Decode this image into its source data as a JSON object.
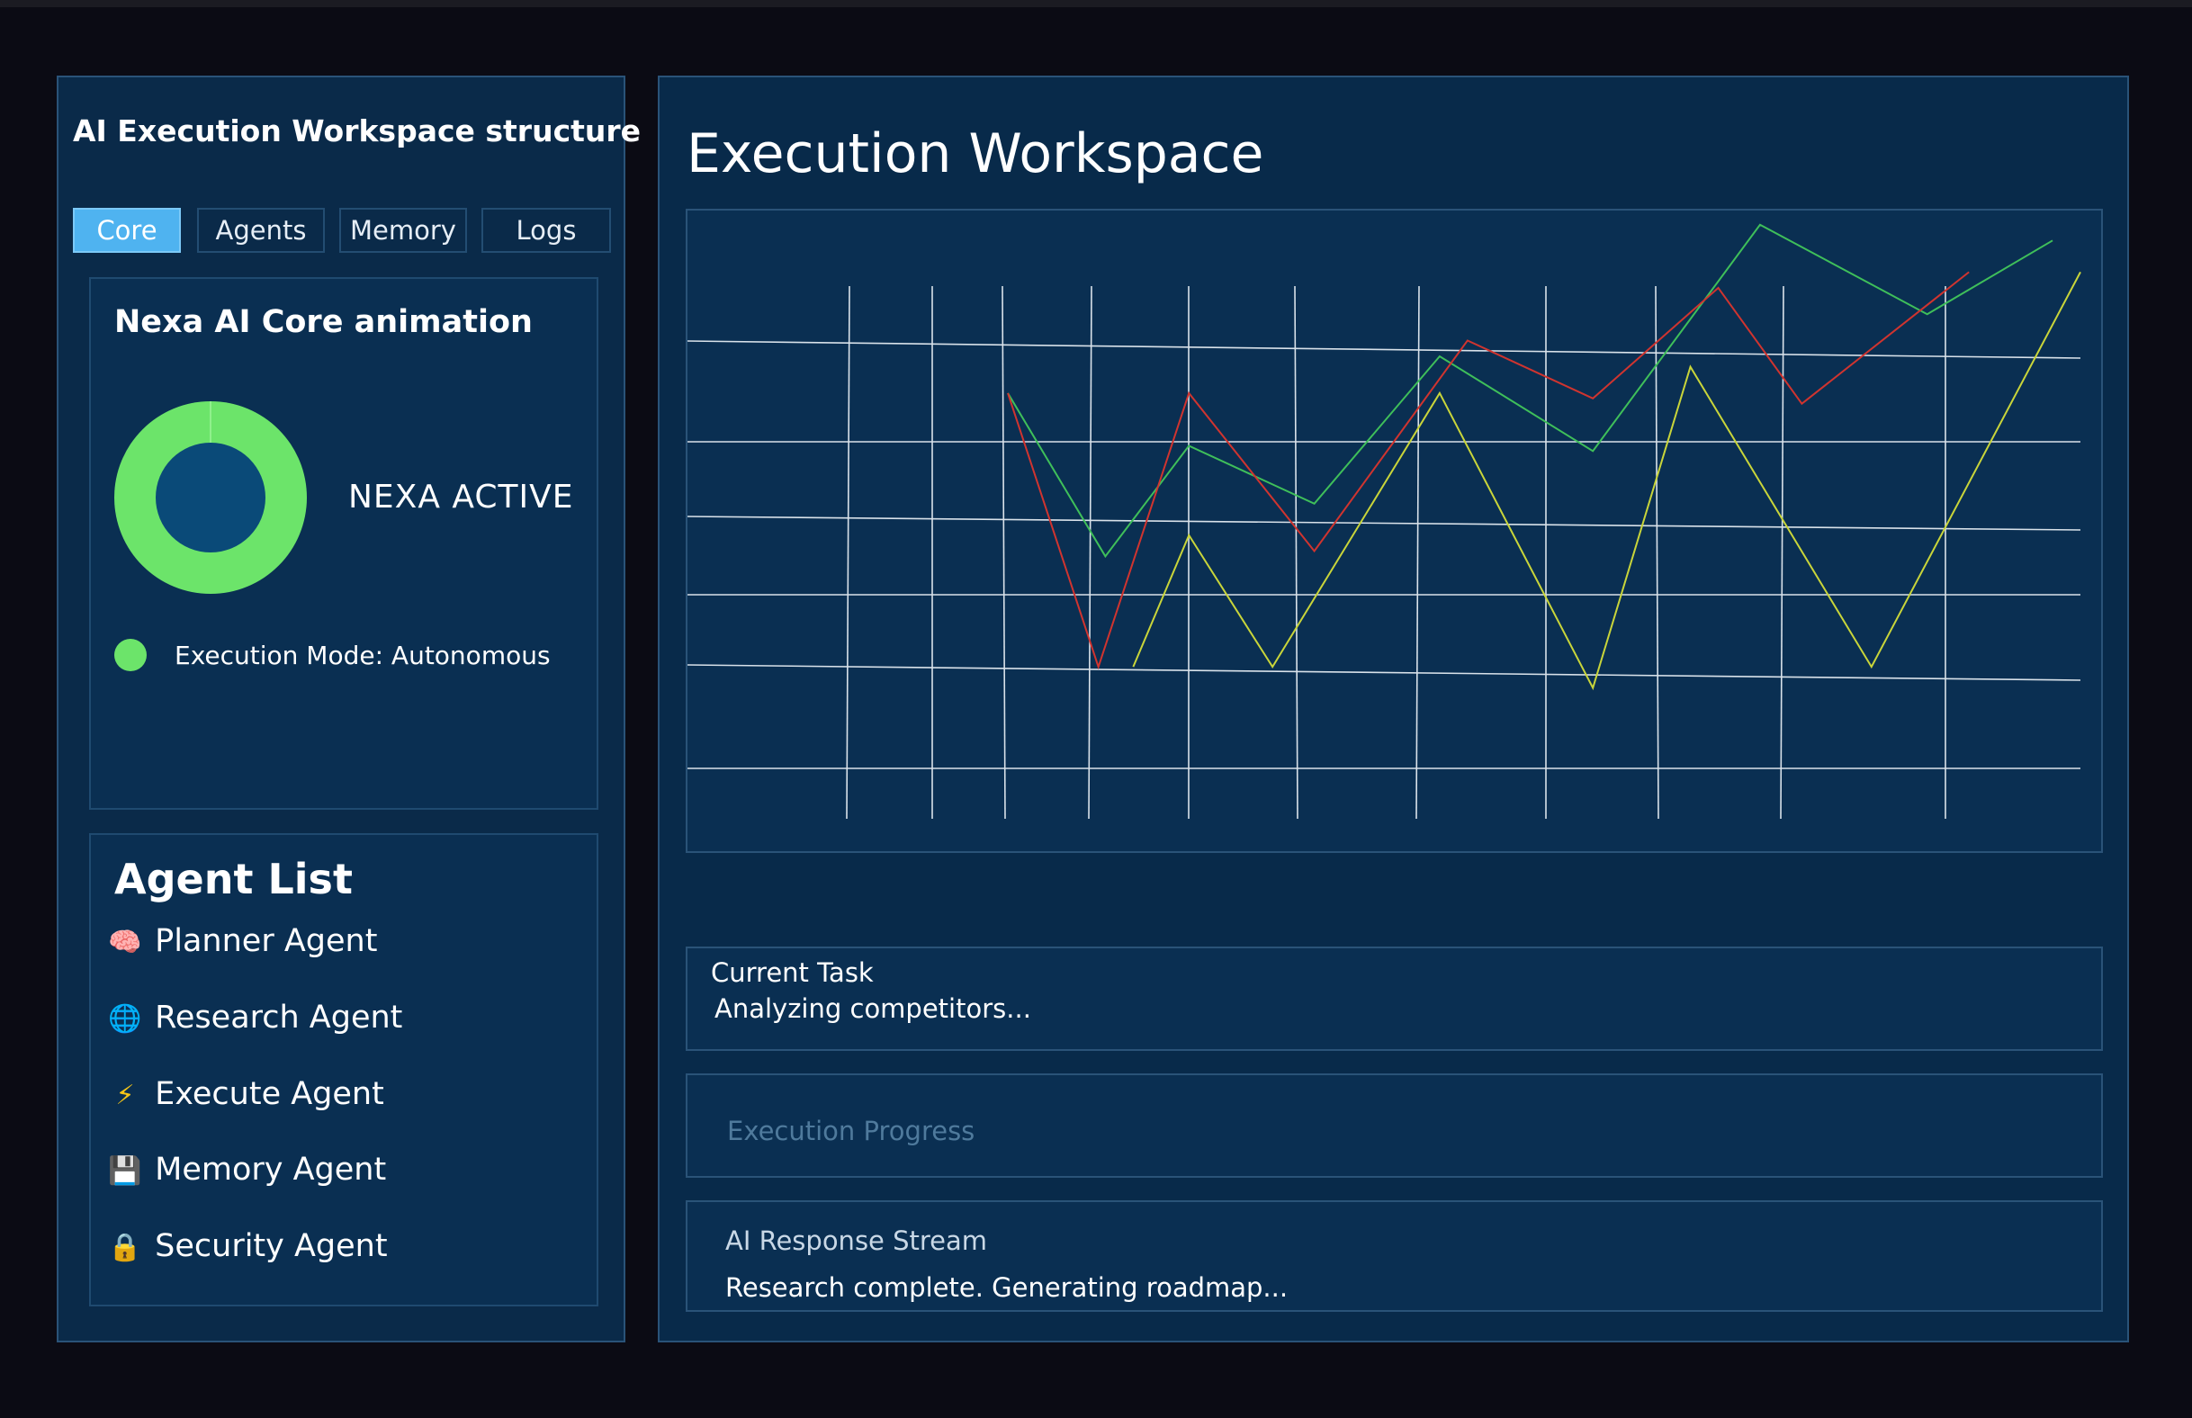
{
  "sidebar": {
    "title": "AI Execution Workspace structure",
    "tabs": [
      {
        "label": "Core",
        "active": true
      },
      {
        "label": "Agents",
        "active": false
      },
      {
        "label": "Memory",
        "active": false
      },
      {
        "label": "Logs",
        "active": false
      }
    ],
    "core": {
      "title": "Nexa AI Core animation",
      "status": "NEXA ACTIVE",
      "mode": "Execution Mode: Autonomous",
      "ring_color": "#6ce46a",
      "center_color": "#0a4a78"
    },
    "agents": {
      "title": "Agent List",
      "items": [
        {
          "icon": "brain-icon",
          "glyph": "🧠",
          "label": "Planner Agent"
        },
        {
          "icon": "globe-icon",
          "glyph": "🌐",
          "label": "Research Agent"
        },
        {
          "icon": "lightning-icon",
          "glyph": "⚡",
          "label": "Execute Agent"
        },
        {
          "icon": "floppy-disk-icon",
          "glyph": "💾",
          "label": "Memory Agent"
        },
        {
          "icon": "lock-icon",
          "glyph": "🔒",
          "label": "Security Agent"
        }
      ]
    }
  },
  "main": {
    "title": "Execution Workspace",
    "task": {
      "label": "Current Task",
      "value": "Analyzing competitors..."
    },
    "progress": {
      "label": "Execution Progress"
    },
    "stream": {
      "label": "AI Response Stream",
      "text": "Research complete.  Generating roadmap..."
    }
  },
  "chart_data": {
    "type": "line",
    "grid": true,
    "legend": "none",
    "xlim": [
      0,
      100
    ],
    "ylim": [
      0,
      100
    ],
    "series": [
      {
        "color": "#3fbf5a",
        "points": [
          [
            23,
            73
          ],
          [
            30,
            42
          ],
          [
            36,
            63
          ],
          [
            45,
            52
          ],
          [
            54,
            80
          ],
          [
            65,
            62
          ],
          [
            77,
            105
          ],
          [
            89,
            88
          ],
          [
            98,
            102
          ]
        ]
      },
      {
        "color": "#d0342f",
        "points": [
          [
            23,
            73
          ],
          [
            29.5,
            21
          ],
          [
            36,
            73
          ],
          [
            45,
            43
          ],
          [
            56,
            83
          ],
          [
            65,
            72
          ],
          [
            74,
            93
          ],
          [
            80,
            71
          ],
          [
            92,
            96
          ]
        ]
      },
      {
        "color": "#c9d53a",
        "points": [
          [
            32,
            21
          ],
          [
            36,
            46
          ],
          [
            42,
            21
          ],
          [
            54,
            73
          ],
          [
            65,
            17
          ],
          [
            72,
            78
          ],
          [
            85,
            21
          ],
          [
            100,
            96
          ]
        ]
      }
    ]
  }
}
